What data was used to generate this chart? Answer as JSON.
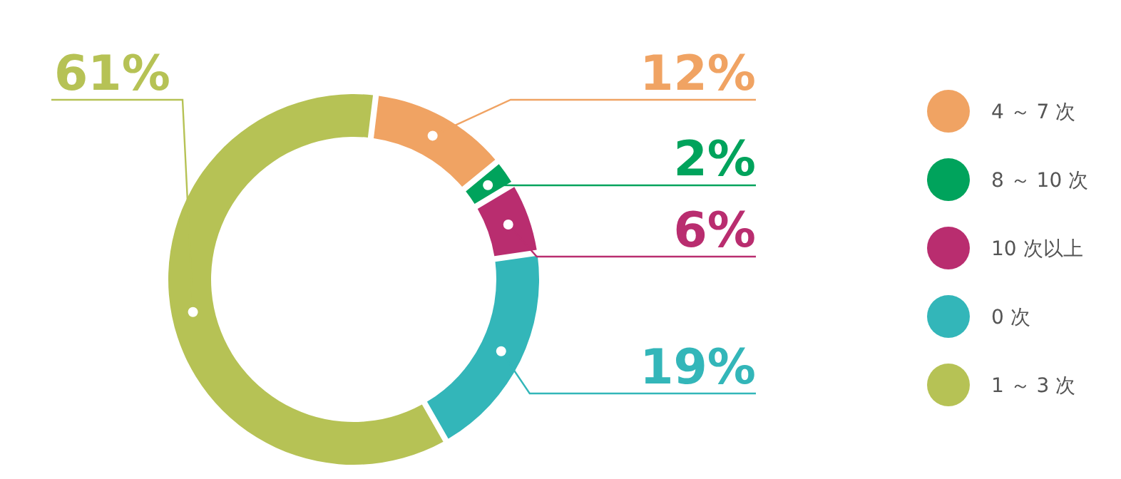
{
  "chart_data": {
    "type": "donut",
    "categories": [
      "4 ～ 7 次",
      "8 ～ 10 次",
      "10 次以上",
      "0 次",
      "1 ～ 3 次"
    ],
    "values": [
      12,
      2,
      6,
      19,
      61
    ],
    "colors": [
      "#f0a363",
      "#00a35c",
      "#b92d6f",
      "#33b6b9",
      "#b6c255"
    ],
    "value_labels": [
      "12%",
      "2%",
      "6%",
      "19%",
      "61%"
    ],
    "legend": "right"
  }
}
